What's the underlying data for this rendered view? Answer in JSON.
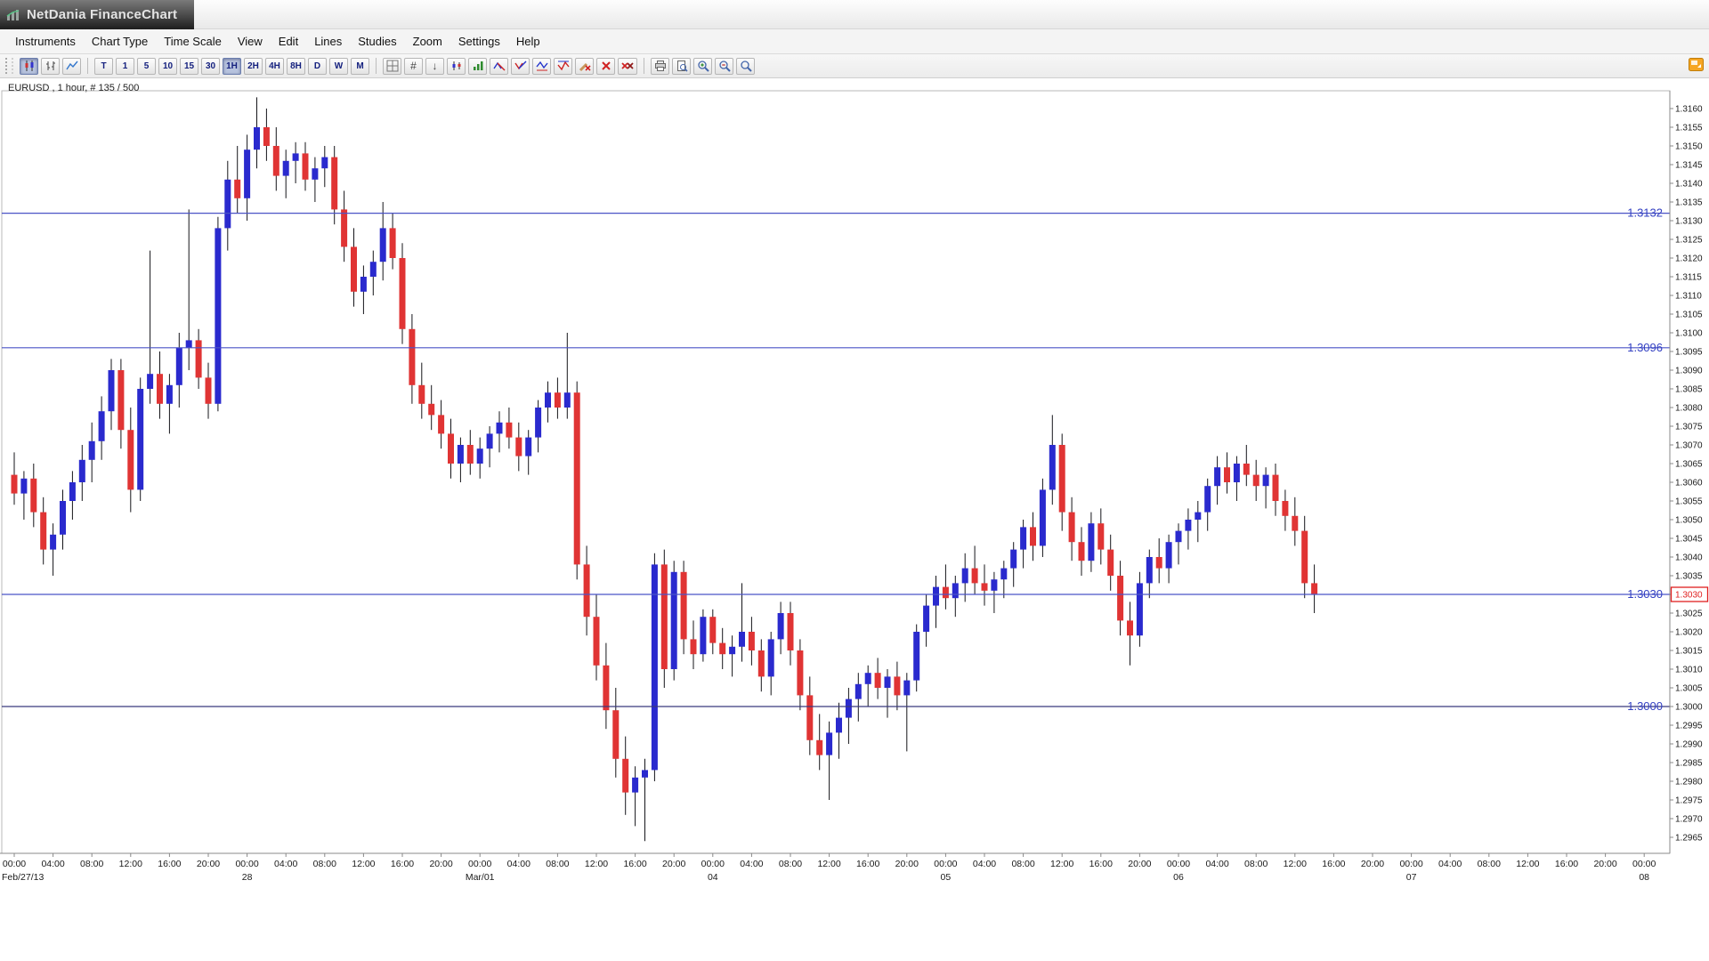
{
  "window": {
    "title": "NetDania FinanceChart"
  },
  "menu": {
    "items": [
      "Instruments",
      "Chart Type",
      "Time Scale",
      "View",
      "Edit",
      "Lines",
      "Studies",
      "Zoom",
      "Settings",
      "Help"
    ]
  },
  "toolbar": {
    "timeframes": [
      "T",
      "1",
      "5",
      "10",
      "15",
      "30",
      "1H",
      "2H",
      "4H",
      "8H",
      "D",
      "W",
      "M"
    ],
    "selected_timeframe": "1H"
  },
  "chart": {
    "label": "EURUSD , 1 hour, # 135 / 500",
    "current_price_label": "1.3030",
    "colors": {
      "up": "#2a2ace",
      "down": "#e03434",
      "wick": "#15151a",
      "hline_label": "#3340c2",
      "current_price": "#e02020",
      "axis_text": "#1a1a1a"
    },
    "hlines": [
      {
        "price": 1.3132,
        "label": "1.3132",
        "color": "#4a53c6"
      },
      {
        "price": 1.3096,
        "label": "1.3096",
        "color": "#4a53c6"
      },
      {
        "price": 1.303,
        "label": "1.3030",
        "color": "#4a53c6"
      },
      {
        "price": 1.3,
        "label": "1.3000",
        "color": "#39397e"
      }
    ]
  },
  "chart_data": {
    "type": "candlestick",
    "symbol": "EURUSD",
    "interval": "1 hour",
    "visible_candles": 135,
    "total_candles": 500,
    "ylim": [
      1.2961,
      1.3165
    ],
    "y_tick_step": 0.0005,
    "y_tick_labels": [
      "1.3160",
      "1.3155",
      "1.3150",
      "1.3145",
      "1.3140",
      "1.3135",
      "1.3130",
      "1.3125",
      "1.3120",
      "1.3115",
      "1.3110",
      "1.3105",
      "1.3100",
      "1.3095",
      "1.3090",
      "1.3085",
      "1.3080",
      "1.3075",
      "1.3070",
      "1.3065",
      "1.3060",
      "1.3055",
      "1.3050",
      "1.3045",
      "1.3040",
      "1.3035",
      "1.3030",
      "1.3025",
      "1.3020",
      "1.3015",
      "1.3010",
      "1.3005",
      "1.3000",
      "1.2995",
      "1.2990",
      "1.2985",
      "1.2980",
      "1.2975",
      "1.2970",
      "1.2965"
    ],
    "x_days": [
      "Feb/27/13",
      "28",
      "Mar/01",
      "04",
      "05",
      "06",
      "07",
      "08"
    ],
    "x_times": [
      "00:00",
      "04:00",
      "08:00",
      "12:00",
      "16:00",
      "20:00"
    ],
    "candles": [
      [
        1.3062,
        1.3068,
        1.3054,
        1.3057
      ],
      [
        1.3057,
        1.3063,
        1.305,
        1.3061
      ],
      [
        1.3061,
        1.3065,
        1.3048,
        1.3052
      ],
      [
        1.3052,
        1.3056,
        1.3038,
        1.3042
      ],
      [
        1.3042,
        1.3049,
        1.3035,
        1.3046
      ],
      [
        1.3046,
        1.3058,
        1.3042,
        1.3055
      ],
      [
        1.3055,
        1.3063,
        1.305,
        1.306
      ],
      [
        1.306,
        1.307,
        1.3055,
        1.3066
      ],
      [
        1.3066,
        1.3076,
        1.306,
        1.3071
      ],
      [
        1.3071,
        1.3083,
        1.3066,
        1.3079
      ],
      [
        1.3079,
        1.3093,
        1.3074,
        1.309
      ],
      [
        1.309,
        1.3093,
        1.3069,
        1.3074
      ],
      [
        1.3074,
        1.308,
        1.3052,
        1.3058
      ],
      [
        1.3058,
        1.3088,
        1.3055,
        1.3085
      ],
      [
        1.3085,
        1.3122,
        1.3081,
        1.3089
      ],
      [
        1.3089,
        1.3095,
        1.3077,
        1.3081
      ],
      [
        1.3081,
        1.3089,
        1.3073,
        1.3086
      ],
      [
        1.3086,
        1.31,
        1.308,
        1.3096
      ],
      [
        1.3096,
        1.3133,
        1.309,
        1.3098
      ],
      [
        1.3098,
        1.3101,
        1.3085,
        1.3088
      ],
      [
        1.3088,
        1.3092,
        1.3077,
        1.3081
      ],
      [
        1.3081,
        1.3131,
        1.3079,
        1.3128
      ],
      [
        1.3128,
        1.3146,
        1.3122,
        1.3141
      ],
      [
        1.3141,
        1.315,
        1.3132,
        1.3136
      ],
      [
        1.3136,
        1.3153,
        1.313,
        1.3149
      ],
      [
        1.3149,
        1.3163,
        1.3144,
        1.3155
      ],
      [
        1.3155,
        1.316,
        1.3146,
        1.315
      ],
      [
        1.315,
        1.3155,
        1.3138,
        1.3142
      ],
      [
        1.3142,
        1.3149,
        1.3136,
        1.3146
      ],
      [
        1.3146,
        1.3151,
        1.314,
        1.3148
      ],
      [
        1.3148,
        1.3151,
        1.3138,
        1.3141
      ],
      [
        1.3141,
        1.3147,
        1.3135,
        1.3144
      ],
      [
        1.3144,
        1.315,
        1.3139,
        1.3147
      ],
      [
        1.3147,
        1.315,
        1.3129,
        1.3133
      ],
      [
        1.3133,
        1.3138,
        1.3119,
        1.3123
      ],
      [
        1.3123,
        1.3128,
        1.3107,
        1.3111
      ],
      [
        1.3111,
        1.3118,
        1.3105,
        1.3115
      ],
      [
        1.3115,
        1.3122,
        1.311,
        1.3119
      ],
      [
        1.3119,
        1.3135,
        1.3114,
        1.3128
      ],
      [
        1.3128,
        1.3132,
        1.3117,
        1.312
      ],
      [
        1.312,
        1.3124,
        1.3097,
        1.3101
      ],
      [
        1.3101,
        1.3105,
        1.3081,
        1.3086
      ],
      [
        1.3086,
        1.3092,
        1.3077,
        1.3081
      ],
      [
        1.3081,
        1.3086,
        1.3074,
        1.3078
      ],
      [
        1.3078,
        1.3082,
        1.3069,
        1.3073
      ],
      [
        1.3073,
        1.3077,
        1.3061,
        1.3065
      ],
      [
        1.3065,
        1.3072,
        1.306,
        1.307
      ],
      [
        1.307,
        1.3074,
        1.3062,
        1.3065
      ],
      [
        1.3065,
        1.3072,
        1.3061,
        1.3069
      ],
      [
        1.3069,
        1.3075,
        1.3064,
        1.3073
      ],
      [
        1.3073,
        1.3079,
        1.3068,
        1.3076
      ],
      [
        1.3076,
        1.308,
        1.3069,
        1.3072
      ],
      [
        1.3072,
        1.3076,
        1.3063,
        1.3067
      ],
      [
        1.3067,
        1.3074,
        1.3062,
        1.3072
      ],
      [
        1.3072,
        1.3082,
        1.3068,
        1.308
      ],
      [
        1.308,
        1.3087,
        1.3076,
        1.3084
      ],
      [
        1.3084,
        1.3088,
        1.3077,
        1.308
      ],
      [
        1.308,
        1.31,
        1.3077,
        1.3084
      ],
      [
        1.3084,
        1.3087,
        1.3034,
        1.3038
      ],
      [
        1.3038,
        1.3043,
        1.3019,
        1.3024
      ],
      [
        1.3024,
        1.303,
        1.3007,
        1.3011
      ],
      [
        1.3011,
        1.3017,
        1.2994,
        1.2999
      ],
      [
        1.2999,
        1.3005,
        1.2981,
        1.2986
      ],
      [
        1.2986,
        1.2992,
        1.2971,
        1.2977
      ],
      [
        1.2977,
        1.2984,
        1.2968,
        1.2981
      ],
      [
        1.2981,
        1.2986,
        1.2964,
        1.2983
      ],
      [
        1.2983,
        1.3041,
        1.298,
        1.3038
      ],
      [
        1.3038,
        1.3042,
        1.3005,
        1.301
      ],
      [
        1.301,
        1.3039,
        1.3007,
        1.3036
      ],
      [
        1.3036,
        1.3039,
        1.3014,
        1.3018
      ],
      [
        1.3018,
        1.3023,
        1.301,
        1.3014
      ],
      [
        1.3014,
        1.3026,
        1.3012,
        1.3024
      ],
      [
        1.3024,
        1.3026,
        1.3014,
        1.3017
      ],
      [
        1.3017,
        1.3021,
        1.301,
        1.3014
      ],
      [
        1.3014,
        1.3019,
        1.3008,
        1.3016
      ],
      [
        1.3016,
        1.3033,
        1.3012,
        1.302
      ],
      [
        1.302,
        1.3024,
        1.3011,
        1.3015
      ],
      [
        1.3015,
        1.3018,
        1.3004,
        1.3008
      ],
      [
        1.3008,
        1.302,
        1.3003,
        1.3018
      ],
      [
        1.3018,
        1.3028,
        1.3014,
        1.3025
      ],
      [
        1.3025,
        1.3028,
        1.3011,
        1.3015
      ],
      [
        1.3015,
        1.3018,
        1.2999,
        1.3003
      ],
      [
        1.3003,
        1.3008,
        1.2987,
        1.2991
      ],
      [
        1.2991,
        1.2998,
        1.2983,
        1.2987
      ],
      [
        1.2987,
        1.2996,
        1.2975,
        1.2993
      ],
      [
        1.2993,
        1.3001,
        1.2986,
        1.2997
      ],
      [
        1.2997,
        1.3005,
        1.299,
        1.3002
      ],
      [
        1.3002,
        1.3009,
        1.2996,
        1.3006
      ],
      [
        1.3006,
        1.3011,
        1.3,
        1.3009
      ],
      [
        1.3009,
        1.3013,
        1.3002,
        1.3005
      ],
      [
        1.3005,
        1.301,
        1.2997,
        1.3008
      ],
      [
        1.3008,
        1.3012,
        1.2999,
        1.3003
      ],
      [
        1.3003,
        1.3009,
        1.2988,
        1.3007
      ],
      [
        1.3007,
        1.3022,
        1.3004,
        1.302
      ],
      [
        1.302,
        1.303,
        1.3016,
        1.3027
      ],
      [
        1.3027,
        1.3035,
        1.3021,
        1.3032
      ],
      [
        1.3032,
        1.3038,
        1.3026,
        1.3029
      ],
      [
        1.3029,
        1.3035,
        1.3024,
        1.3033
      ],
      [
        1.3033,
        1.3041,
        1.3028,
        1.3037
      ],
      [
        1.3037,
        1.3043,
        1.303,
        1.3033
      ],
      [
        1.3033,
        1.3038,
        1.3027,
        1.3031
      ],
      [
        1.3031,
        1.3036,
        1.3025,
        1.3034
      ],
      [
        1.3034,
        1.3039,
        1.3029,
        1.3037
      ],
      [
        1.3037,
        1.3044,
        1.3032,
        1.3042
      ],
      [
        1.3042,
        1.305,
        1.3037,
        1.3048
      ],
      [
        1.3048,
        1.3052,
        1.3039,
        1.3043
      ],
      [
        1.3043,
        1.3061,
        1.304,
        1.3058
      ],
      [
        1.3058,
        1.3078,
        1.3054,
        1.307
      ],
      [
        1.307,
        1.3073,
        1.3047,
        1.3052
      ],
      [
        1.3052,
        1.3056,
        1.3039,
        1.3044
      ],
      [
        1.3044,
        1.3048,
        1.3035,
        1.3039
      ],
      [
        1.3039,
        1.3052,
        1.3036,
        1.3049
      ],
      [
        1.3049,
        1.3053,
        1.3038,
        1.3042
      ],
      [
        1.3042,
        1.3046,
        1.3031,
        1.3035
      ],
      [
        1.3035,
        1.3039,
        1.3019,
        1.3023
      ],
      [
        1.3023,
        1.3028,
        1.3011,
        1.3019
      ],
      [
        1.3019,
        1.3036,
        1.3016,
        1.3033
      ],
      [
        1.3033,
        1.3042,
        1.3029,
        1.304
      ],
      [
        1.304,
        1.3045,
        1.3033,
        1.3037
      ],
      [
        1.3037,
        1.3046,
        1.3033,
        1.3044
      ],
      [
        1.3044,
        1.3049,
        1.3038,
        1.3047
      ],
      [
        1.3047,
        1.3053,
        1.3042,
        1.305
      ],
      [
        1.305,
        1.3055,
        1.3044,
        1.3052
      ],
      [
        1.3052,
        1.3061,
        1.3047,
        1.3059
      ],
      [
        1.3059,
        1.3067,
        1.3054,
        1.3064
      ],
      [
        1.3064,
        1.3068,
        1.3057,
        1.306
      ],
      [
        1.306,
        1.3067,
        1.3055,
        1.3065
      ],
      [
        1.3065,
        1.307,
        1.3059,
        1.3062
      ],
      [
        1.3062,
        1.3066,
        1.3055,
        1.3059
      ],
      [
        1.3059,
        1.3064,
        1.3053,
        1.3062
      ],
      [
        1.3062,
        1.3065,
        1.3051,
        1.3055
      ],
      [
        1.3055,
        1.3058,
        1.3047,
        1.3051
      ],
      [
        1.3051,
        1.3056,
        1.3043,
        1.3047
      ],
      [
        1.3047,
        1.3051,
        1.3029,
        1.3033
      ],
      [
        1.3033,
        1.3038,
        1.3025,
        1.303
      ]
    ]
  }
}
